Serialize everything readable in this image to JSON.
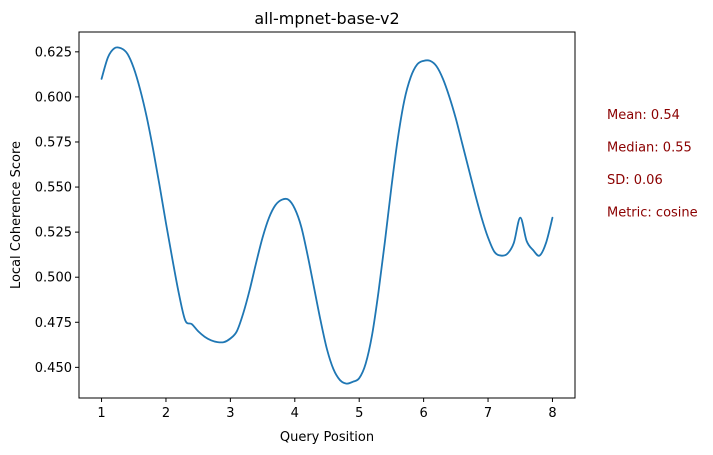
{
  "chart_data": {
    "type": "line",
    "title": "all-mpnet-base-v2",
    "xlabel": "Query Position",
    "ylabel": "Local Coherence Score",
    "xlim": [
      0.65,
      8.35
    ],
    "ylim": [
      0.433,
      0.636
    ],
    "x_ticks": [
      1,
      2,
      3,
      4,
      5,
      6,
      7,
      8
    ],
    "x_tick_labels": [
      "1",
      "2",
      "3",
      "4",
      "5",
      "6",
      "7",
      "8"
    ],
    "y_ticks": [
      0.45,
      0.475,
      0.5,
      0.525,
      0.55,
      0.575,
      0.6,
      0.625
    ],
    "y_tick_labels": [
      "0.450",
      "0.475",
      "0.500",
      "0.525",
      "0.550",
      "0.575",
      "0.600",
      "0.625"
    ],
    "grid": false,
    "legend": "none",
    "series": [
      {
        "color": "#1f77b4",
        "x": [
          1.0,
          1.1,
          1.2,
          1.3,
          1.4,
          1.5,
          1.6,
          1.7,
          1.8,
          1.9,
          2.0,
          2.1,
          2.2,
          2.3,
          2.4,
          2.5,
          2.6,
          2.7,
          2.8,
          2.9,
          3.0,
          3.1,
          3.2,
          3.3,
          3.4,
          3.5,
          3.6,
          3.7,
          3.8,
          3.9,
          4.0,
          4.1,
          4.2,
          4.3,
          4.4,
          4.5,
          4.6,
          4.7,
          4.8,
          4.9,
          5.0,
          5.1,
          5.2,
          5.3,
          5.4,
          5.5,
          5.6,
          5.7,
          5.8,
          5.9,
          6.0,
          6.1,
          6.2,
          6.3,
          6.4,
          6.5,
          6.6,
          6.7,
          6.8,
          6.9,
          7.0,
          7.1,
          7.2,
          7.3,
          7.4,
          7.5,
          7.6,
          7.7,
          7.8,
          7.9,
          8.0
        ],
        "y": [
          0.61,
          0.622,
          0.627,
          0.627,
          0.624,
          0.616,
          0.604,
          0.589,
          0.571,
          0.551,
          0.53,
          0.51,
          0.491,
          0.476,
          0.474,
          0.47,
          0.467,
          0.465,
          0.464,
          0.464,
          0.466,
          0.47,
          0.48,
          0.493,
          0.508,
          0.522,
          0.533,
          0.54,
          0.543,
          0.543,
          0.538,
          0.528,
          0.512,
          0.494,
          0.476,
          0.46,
          0.449,
          0.443,
          0.441,
          0.442,
          0.444,
          0.452,
          0.468,
          0.492,
          0.52,
          0.55,
          0.577,
          0.598,
          0.611,
          0.618,
          0.62,
          0.62,
          0.617,
          0.61,
          0.6,
          0.588,
          0.574,
          0.56,
          0.546,
          0.533,
          0.522,
          0.514,
          0.512,
          0.513,
          0.519,
          0.533,
          0.52,
          0.515,
          0.512,
          0.519,
          0.533
        ]
      }
    ],
    "annotations": [
      {
        "text": "Mean: 0.54",
        "color": "#8b0000"
      },
      {
        "text": "Median: 0.55",
        "color": "#8b0000"
      },
      {
        "text": "SD: 0.06",
        "color": "#8b0000"
      },
      {
        "text": "Metric: cosine",
        "color": "#8b0000"
      }
    ]
  }
}
